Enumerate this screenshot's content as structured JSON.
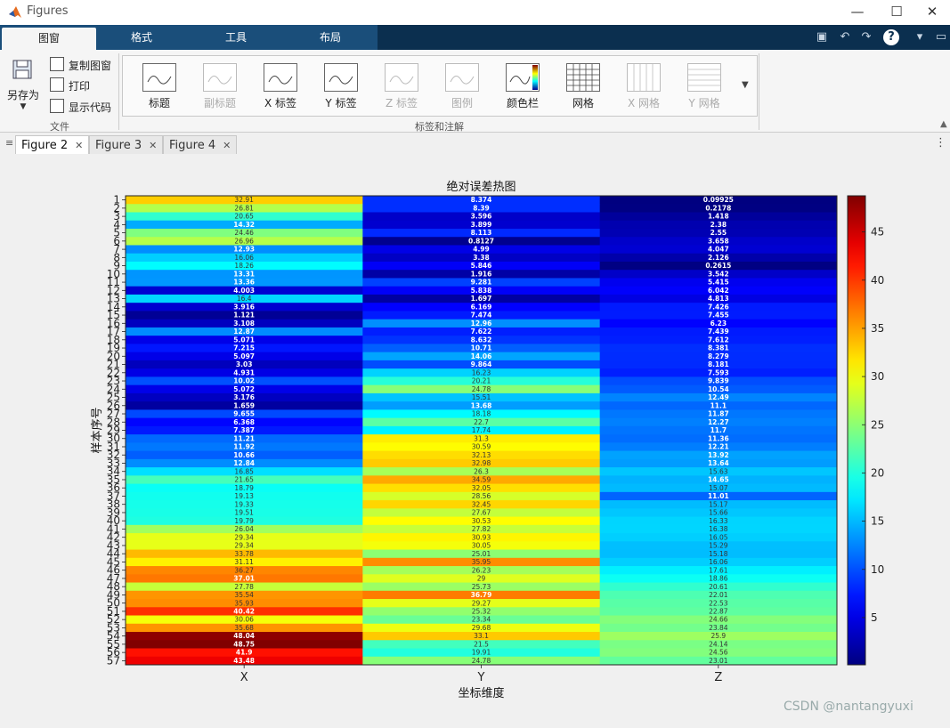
{
  "window": {
    "title": "Figures"
  },
  "ribbon": {
    "tabs": [
      "图窗",
      "格式",
      "工具",
      "布局"
    ],
    "file": {
      "save_as": "另存为",
      "copy": "复制图窗",
      "print": "打印",
      "show_code": "显示代码",
      "group_label": "文件"
    },
    "annotations": {
      "group_label": "标签和注解",
      "buttons": [
        "标题",
        "副标题",
        "X 标签",
        "Y 标签",
        "Z 标签",
        "图例",
        "颜色栏",
        "网格",
        "X 网格",
        "Y 网格"
      ],
      "disabled": [
        false,
        true,
        false,
        false,
        true,
        true,
        false,
        false,
        true,
        true
      ]
    }
  },
  "doc_tabs": [
    "Figure 2",
    "Figure 3",
    "Figure 4"
  ],
  "watermark": "CSDN @nantangyuxi",
  "chart_data": {
    "type": "heatmap",
    "title": "绝对误差热图",
    "xlabel": "坐标维度",
    "ylabel": "样本序号",
    "columns": [
      "X",
      "Y",
      "Z"
    ],
    "rows": [
      "1",
      "2",
      "3",
      "4",
      "5",
      "6",
      "7",
      "8",
      "9",
      "10",
      "11",
      "12",
      "13",
      "14",
      "15",
      "16",
      "17",
      "18",
      "19",
      "20",
      "21",
      "22",
      "23",
      "24",
      "25",
      "26",
      "27",
      "28",
      "29",
      "30",
      "31",
      "32",
      "33",
      "34",
      "35",
      "36",
      "37",
      "38",
      "39",
      "40",
      "41",
      "42",
      "43",
      "44",
      "45",
      "46",
      "47",
      "48",
      "49",
      "50",
      "51",
      "52",
      "53",
      "54",
      "55",
      "56",
      "57"
    ],
    "values": [
      [
        32.91,
        8.374,
        0.09925
      ],
      [
        26.81,
        8.39,
        0.2178
      ],
      [
        20.65,
        3.596,
        1.418
      ],
      [
        14.32,
        3.899,
        2.38
      ],
      [
        24.46,
        8.113,
        2.55
      ],
      [
        26.96,
        0.8127,
        3.658
      ],
      [
        12.93,
        4.99,
        4.047
      ],
      [
        16.06,
        3.38,
        2.126
      ],
      [
        18.26,
        5.846,
        0.2615
      ],
      [
        13.31,
        1.916,
        3.542
      ],
      [
        13.36,
        9.281,
        5.415
      ],
      [
        4.003,
        5.838,
        6.042
      ],
      [
        16.4,
        1.697,
        4.813
      ],
      [
        3.916,
        6.169,
        7.426
      ],
      [
        1.121,
        7.474,
        7.455
      ],
      [
        3.108,
        12.96,
        6.23
      ],
      [
        12.87,
        7.622,
        7.439
      ],
      [
        5.071,
        8.632,
        7.612
      ],
      [
        7.215,
        10.71,
        8.381
      ],
      [
        5.097,
        14.06,
        8.279
      ],
      [
        3.03,
        9.864,
        8.181
      ],
      [
        4.931,
        16.23,
        7.593
      ],
      [
        10.02,
        20.21,
        9.839
      ],
      [
        5.072,
        24.78,
        10.54
      ],
      [
        3.176,
        15.51,
        12.49
      ],
      [
        1.659,
        13.68,
        11.1
      ],
      [
        9.655,
        18.18,
        11.87
      ],
      [
        6.368,
        22.7,
        12.27
      ],
      [
        7.387,
        17.74,
        11.7
      ],
      [
        11.21,
        31.3,
        11.36
      ],
      [
        11.92,
        30.59,
        12.21
      ],
      [
        10.66,
        32.13,
        13.92
      ],
      [
        12.84,
        32.98,
        13.64
      ],
      [
        16.85,
        26.3,
        15.63
      ],
      [
        21.65,
        34.59,
        14.65
      ],
      [
        18.79,
        32.05,
        15.07
      ],
      [
        19.13,
        28.56,
        11.01
      ],
      [
        19.33,
        32.45,
        15.17
      ],
      [
        19.51,
        27.67,
        15.66
      ],
      [
        19.79,
        30.53,
        16.33
      ],
      [
        26.04,
        27.82,
        16.38
      ],
      [
        29.34,
        30.93,
        16.05
      ],
      [
        29.34,
        30.05,
        15.29
      ],
      [
        33.78,
        25.01,
        15.18
      ],
      [
        31.11,
        35.95,
        16.06
      ],
      [
        36.27,
        26.23,
        17.61
      ],
      [
        37.01,
        29,
        18.86
      ],
      [
        27.78,
        25.73,
        20.61
      ],
      [
        35.54,
        36.79,
        22.01
      ],
      [
        35.93,
        29.27,
        22.53
      ],
      [
        40.42,
        25.32,
        22.87
      ],
      [
        30.06,
        23.34,
        24.66
      ],
      [
        35.68,
        29.68,
        23.84
      ],
      [
        48.04,
        33.1,
        25.9
      ],
      [
        48.75,
        21.5,
        24.14
      ],
      [
        41.9,
        19.91,
        24.56
      ],
      [
        43.48,
        24.78,
        23.01
      ]
    ],
    "colormap": "jet",
    "clim": [
      0.09925,
      48.75
    ],
    "colorbar_ticks": [
      5,
      10,
      15,
      20,
      25,
      30,
      35,
      40,
      45
    ]
  }
}
